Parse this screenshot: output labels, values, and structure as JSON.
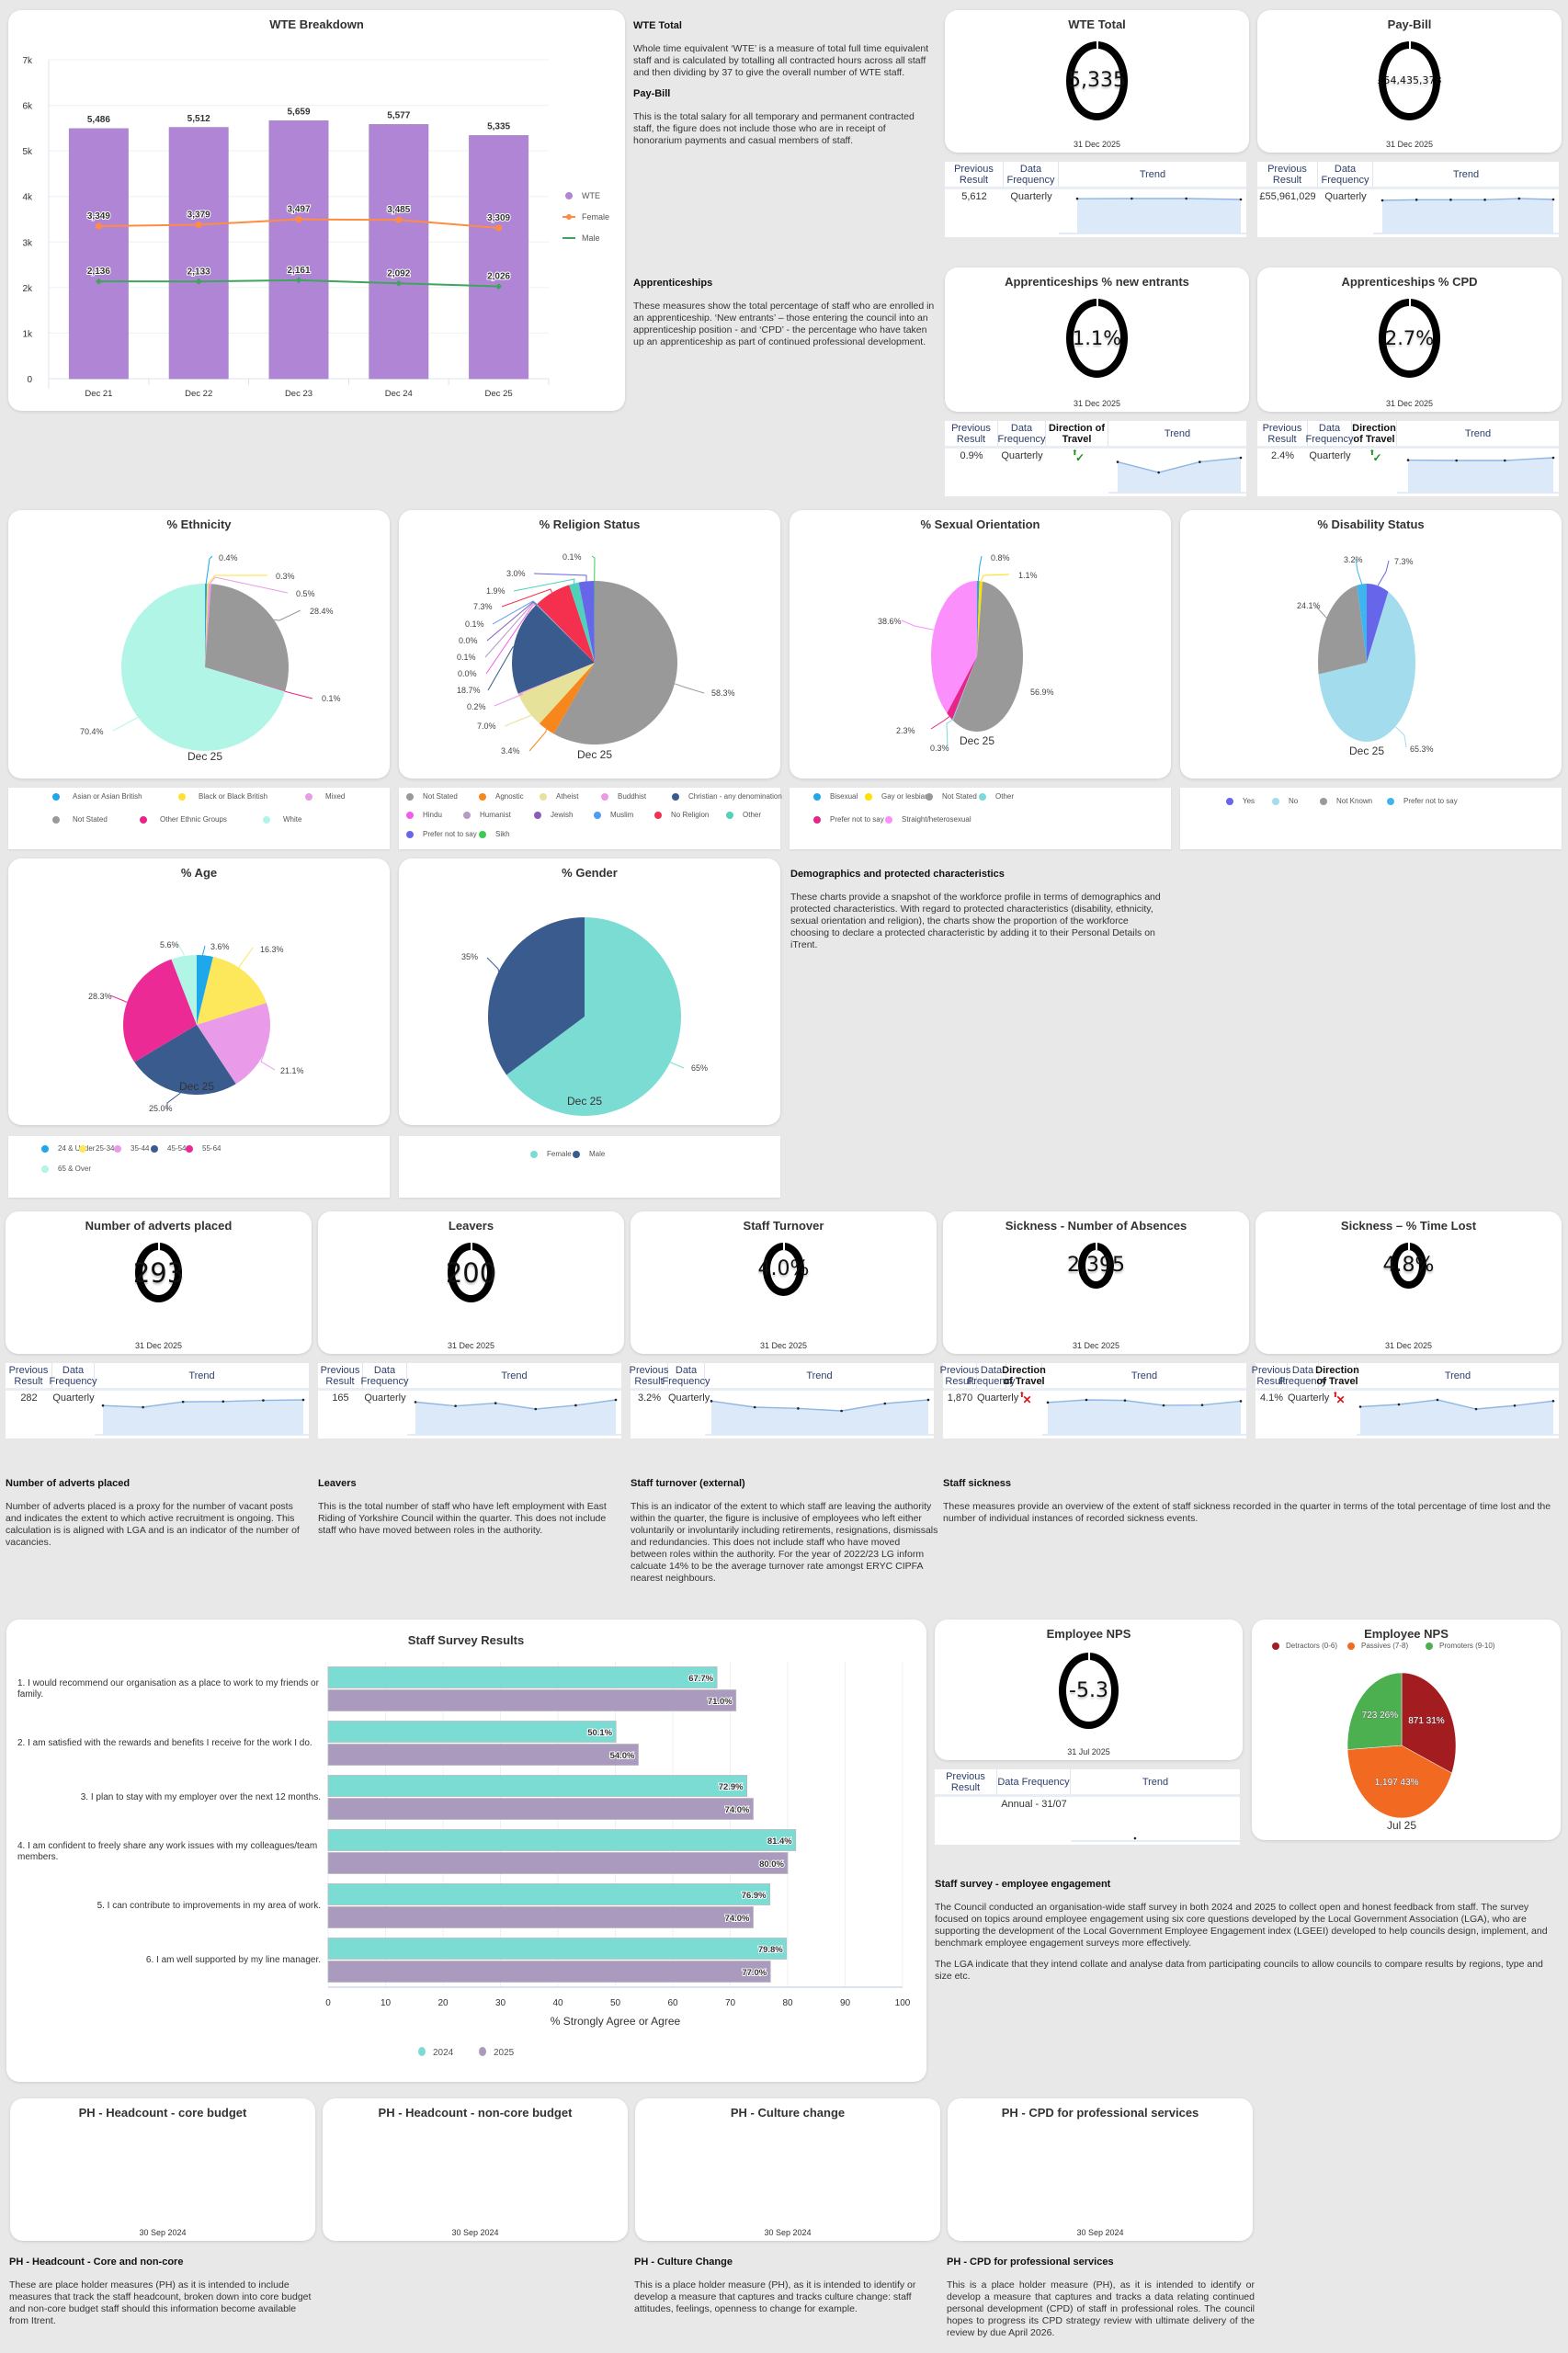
{
  "wte_breakdown": {
    "title": "WTE Breakdown",
    "legend": [
      "WTE",
      "Female",
      "Male"
    ]
  },
  "chart_data": [
    {
      "id": "wte_breakdown",
      "type": "bar",
      "title": "WTE Breakdown",
      "categories": [
        "Dec 21",
        "Dec 22",
        "Dec 23",
        "Dec 24",
        "Dec 25"
      ],
      "series": [
        {
          "name": "WTE",
          "type": "bar",
          "color": "#b085d6",
          "values": [
            5486,
            5512,
            5659,
            5577,
            5335
          ],
          "labels": [
            "5,486",
            "5,512",
            "5,659",
            "5,577",
            "5,335"
          ]
        },
        {
          "name": "Female",
          "type": "line",
          "color": "#ff8c42",
          "values": [
            3349,
            3379,
            3497,
            3485,
            3309
          ],
          "labels": [
            "3,349",
            "3,379",
            "3,497",
            "3,485",
            "3,309"
          ]
        },
        {
          "name": "Male",
          "type": "line",
          "color": "#3fa55b",
          "values": [
            2136,
            2133,
            2161,
            2092,
            2026
          ],
          "labels": [
            "2,136",
            "2,133",
            "2,161",
            "2,092",
            "2,026"
          ]
        }
      ],
      "yticks": [
        "0",
        "1k",
        "2k",
        "3k",
        "4k",
        "5k",
        "6k",
        "7k"
      ],
      "ylim": [
        0,
        7000
      ],
      "legend_position": "right",
      "grid": true
    },
    {
      "id": "ethnicity",
      "type": "pie",
      "title": "% Ethnicity",
      "subtitle": "Dec 25",
      "slices": [
        {
          "label": "Asian or Asian British",
          "value": 0.4,
          "text": "0.4%",
          "color": "#1ea7ea"
        },
        {
          "label": "Black or Black British",
          "value": 0.3,
          "text": "0.3%",
          "color": "#ffe033"
        },
        {
          "label": "Mixed",
          "value": 0.5,
          "text": "0.5%",
          "color": "#eb9ae8"
        },
        {
          "label": "Not Stated",
          "value": 28.4,
          "text": "28.4%",
          "color": "#999999"
        },
        {
          "label": "Other Ethnic Groups",
          "value": 0.1,
          "text": "0.1%",
          "color": "#e8248a"
        },
        {
          "label": "White",
          "value": 70.4,
          "text": "70.4%",
          "color": "#b0f5e6"
        }
      ]
    },
    {
      "id": "religion",
      "type": "pie",
      "title": "% Religion Status",
      "subtitle": "Dec 25",
      "slices": [
        {
          "label": "Not Stated",
          "value": 58.3,
          "text": "58.3%",
          "color": "#999999"
        },
        {
          "label": "Agnostic",
          "value": 3.4,
          "text": "3.4%",
          "color": "#f7871d"
        },
        {
          "label": "Atheist",
          "value": 7.0,
          "text": "7.0%",
          "color": "#e6e29a"
        },
        {
          "label": "Buddhist",
          "value": 0.2,
          "text": "0.2%",
          "color": "#eb9ae8"
        },
        {
          "label": "Christian - any denomination",
          "value": 18.7,
          "text": "18.7%",
          "color": "#3a5b8e"
        },
        {
          "label": "Hindu",
          "value": 0.0,
          "text": "0.0%",
          "color": "#f25ce9"
        },
        {
          "label": "Humanist",
          "value": 0.1,
          "text": "0.1%",
          "color": "#b49cc4"
        },
        {
          "label": "Jewish",
          "value": 0.0,
          "text": "0.0%",
          "color": "#8b5cb8"
        },
        {
          "label": "Muslim",
          "value": 0.1,
          "text": "0.1%",
          "color": "#4e9af5"
        },
        {
          "label": "No Religion",
          "value": 7.3,
          "text": "7.3%",
          "color": "#f5304f"
        },
        {
          "label": "Other",
          "value": 1.9,
          "text": "1.9%",
          "color": "#4fd1bc"
        },
        {
          "label": "Prefer not to say",
          "value": 3.0,
          "text": "3.0%",
          "color": "#6766ea"
        },
        {
          "label": "Sikh",
          "value": 0.1,
          "text": "0.1%",
          "color": "#3dca52"
        }
      ]
    },
    {
      "id": "sexual_orientation",
      "type": "pie",
      "title": "% Sexual Orientation",
      "subtitle": "Dec 25",
      "slices": [
        {
          "label": "Bisexual",
          "value": 0.8,
          "text": "0.8%",
          "color": "#1ea7ea"
        },
        {
          "label": "Gay or lesbian",
          "value": 1.1,
          "text": "1.1%",
          "color": "#ffe000"
        },
        {
          "label": "Not Stated",
          "value": 56.9,
          "text": "56.9%",
          "color": "#999999"
        },
        {
          "label": "Other",
          "value": 0.3,
          "text": "0.3%",
          "color": "#7dd8d8"
        },
        {
          "label": "Prefer not to say",
          "value": 2.3,
          "text": "2.3%",
          "color": "#e8248a"
        },
        {
          "label": "Straight/heterosexual",
          "value": 38.6,
          "text": "38.6%",
          "color": "#fb8ffb"
        }
      ]
    },
    {
      "id": "disability",
      "type": "pie",
      "title": "% Disability Status",
      "subtitle": "Dec 25",
      "slices": [
        {
          "label": "Yes",
          "value": 7.3,
          "text": "7.3%",
          "color": "#6766ea"
        },
        {
          "label": "No",
          "value": 65.3,
          "text": "65.3%",
          "color": "#a3dcec"
        },
        {
          "label": "Not Known",
          "value": 24.1,
          "text": "24.1%",
          "color": "#999999"
        },
        {
          "label": "Prefer not to say",
          "value": 3.2,
          "text": "3.2%",
          "color": "#3fb5ee"
        }
      ]
    },
    {
      "id": "age",
      "type": "pie",
      "title": "% Age",
      "subtitle": "Dec 25",
      "slices": [
        {
          "label": "24 & Under",
          "value": 3.6,
          "text": "3.6%",
          "color": "#1ea7ea"
        },
        {
          "label": "25-34",
          "value": 16.3,
          "text": "16.3%",
          "color": "#fce85a"
        },
        {
          "label": "35-44",
          "value": 21.1,
          "text": "21.1%",
          "color": "#e99ae8"
        },
        {
          "label": "45-54",
          "value": 25.0,
          "text": "25.0%",
          "color": "#3a5b8e"
        },
        {
          "label": "55-64",
          "value": 28.3,
          "text": "28.3%",
          "color": "#eb2a96"
        },
        {
          "label": "65 & Over",
          "value": 5.6,
          "text": "5.6%",
          "color": "#b0f5e6"
        }
      ]
    },
    {
      "id": "gender",
      "type": "pie",
      "title": "% Gender",
      "subtitle": "Dec 25",
      "slices": [
        {
          "label": "Female",
          "value": 65,
          "text": "65%",
          "color": "#7bdcd4"
        },
        {
          "label": "Male",
          "value": 35,
          "text": "35%",
          "color": "#3a5b8e"
        }
      ]
    },
    {
      "id": "staff_survey",
      "type": "bar",
      "orientation": "horizontal",
      "title": "Staff Survey Results",
      "xlabel": "% Strongly Agree or Agree",
      "xlim": [
        0,
        100
      ],
      "xticks": [
        "0",
        "10",
        "20",
        "30",
        "40",
        "50",
        "60",
        "70",
        "80",
        "90",
        "100"
      ],
      "categories": [
        "1. I would recommend our organisation as a place to work to my friends or family.",
        "2. I am satisfied with the rewards and benefits I receive for the work I do.",
        "3. I plan to stay with my employer over the next 12 months.",
        "4. I am confident to freely share any work issues with my colleagues/team members.",
        "5. I can contribute to improvements in my area of work.",
        "6. I am well supported by my line manager."
      ],
      "series": [
        {
          "name": "2024",
          "color": "#7bdcd4",
          "values": [
            67.7,
            50.1,
            72.9,
            81.4,
            76.9,
            79.8
          ],
          "labels": [
            "67.7%",
            "50.1%",
            "72.9%",
            "81.4%",
            "76.9%",
            "79.8%"
          ]
        },
        {
          "name": "2025",
          "color": "#aa9abd",
          "values": [
            71.0,
            54.0,
            74.0,
            80.0,
            74.0,
            77.0
          ],
          "labels": [
            "71.0%",
            "54.0%",
            "74.0%",
            "80.0%",
            "74.0%",
            "77.0%"
          ]
        }
      ],
      "legend_position": "bottom",
      "grid": true
    },
    {
      "id": "enps",
      "type": "pie",
      "title": "Employee NPS",
      "subtitle": "Jul 25",
      "legend_position": "top",
      "slices": [
        {
          "label": "Detractors (0-6)",
          "value": 871,
          "pct": 31,
          "text": "871 31%",
          "color": "#a31c1f"
        },
        {
          "label": "Passives (7-8)",
          "value": 1197,
          "pct": 43,
          "text": "1,197 43%",
          "color": "#f26a22"
        },
        {
          "label": "Promoters (9-10)",
          "value": 723,
          "pct": 26,
          "text": "723 26%",
          "color": "#4caf50"
        }
      ]
    }
  ],
  "kpis": {
    "wte_total": {
      "title": "WTE Total",
      "value": "5,335",
      "date": "31 Dec 2025",
      "prev": "5,612",
      "freq": "Quarterly",
      "trend": [
        5486,
        5512,
        5510,
        5335
      ]
    },
    "pay_bill": {
      "title": "Pay-Bill",
      "value": "£54,435,378",
      "date": "31 Dec 2025",
      "prev": "£55,961,029",
      "freq": "Quarterly",
      "trend": [
        52.8,
        53.9,
        53.9,
        53.9,
        56.0,
        54.4
      ]
    },
    "appr_new": {
      "title": "Apprenticeships % new entrants",
      "value": "1.1%",
      "date": "31 Dec 2025",
      "prev": "0.9%",
      "freq": "Quarterly",
      "direction": "up-good",
      "trend": [
        0.9,
        0.4,
        0.9,
        1.1
      ]
    },
    "appr_cpd": {
      "title": "Apprenticeships % CPD",
      "value": "2.7%",
      "date": "31 Dec 2025",
      "prev": "2.4%",
      "freq": "Quarterly",
      "direction": "up-good",
      "trend": [
        2.4,
        2.35,
        2.35,
        2.7
      ]
    },
    "adverts": {
      "title": "Number of adverts placed",
      "value": "293",
      "date": "31 Dec 2025",
      "prev": "282",
      "freq": "Quarterly",
      "trend": [
        240,
        225,
        275,
        278,
        288,
        293
      ]
    },
    "leavers": {
      "title": "Leavers",
      "value": "200",
      "date": "31 Dec 2025",
      "prev": "165",
      "freq": "Quarterly",
      "trend": [
        190,
        172,
        185,
        158,
        175,
        200
      ]
    },
    "turnover": {
      "title": "Staff Turnover",
      "value": "4.0%",
      "date": "31 Dec 2025",
      "prev": "3.2%",
      "freq": "Quarterly",
      "trend": [
        3.9,
        3.4,
        3.3,
        3.1,
        3.7,
        4.0
      ]
    },
    "sick_abs": {
      "title": "Sickness - Number of Absences",
      "value": "2,395",
      "date": "31 Dec 2025",
      "prev": "1,870",
      "freq": "Quarterly",
      "direction": "up-bad",
      "trend": [
        2350,
        2440,
        2420,
        2250,
        2260,
        2395
      ]
    },
    "sick_pct": {
      "title": "Sickness – % Time Lost",
      "value": "4.8%",
      "date": "31 Dec 2025",
      "prev": "4.1%",
      "freq": "Quarterly",
      "direction": "up-bad",
      "trend": [
        4.3,
        4.5,
        4.9,
        4.1,
        4.4,
        4.8
      ]
    },
    "enps": {
      "title": "Employee NPS",
      "value": "-5.3",
      "date": "31 Jul 2025",
      "prev": "",
      "freq": "Annual - 31/07",
      "trend": [
        -5.3
      ]
    }
  },
  "table_headers": {
    "prev_one_line": "Previous Result",
    "prev_two_line": "Previous Result",
    "freq": "Data Frequency",
    "direction": "Direction of Travel",
    "trend": "Trend"
  },
  "placeholders": [
    {
      "title": "PH - Headcount - core budget",
      "date": "30 Sep 2024"
    },
    {
      "title": "PH - Headcount - non-core budget",
      "date": "30 Sep 2024"
    },
    {
      "title": "PH - Culture change",
      "date": "30 Sep 2024"
    },
    {
      "title": "PH - CPD for professional services",
      "date": "30 Sep 2024"
    }
  ],
  "descriptions": {
    "wte_total": {
      "title": "WTE Total",
      "body": "Whole time equivalent ‘WTE’ is a measure of total full time equivalent staff and is calculated by totalling all contracted hours across all staff and then dividing by 37 to give the overall number of WTE staff."
    },
    "pay_bill": {
      "title": "Pay-Bill",
      "body": "This is the total salary for all temporary and permanent contracted staff, the figure does not include those who are in receipt of honorarium payments and casual members of staff."
    },
    "apprenticeships": {
      "title": "Apprenticeships",
      "body": "These measures show the total percentage of staff who are enrolled in an apprenticeship.  ‘New entrants’ – those entering the council into an apprenticeship position - and ‘CPD’ - the percentage who have taken up an apprenticeship as part of continued professional development."
    },
    "demographics": {
      "title": "Demographics and protected characteristics",
      "body": "These charts provide a snapshot of the workforce profile in terms of demographics and protected characteristics. With regard to protected characteristics (disability, ethnicity, sexual orientation and religion), the charts show the proportion of the workforce choosing to declare a protected characteristic by adding it to their Personal Details on iTrent."
    },
    "adverts": {
      "title": "Number of adverts placed",
      "body": "Number of adverts placed is a proxy for the number of vacant posts and indicates the extent to which active recruitment is ongoing. This calculation is is aligned with LGA and is an indicator of the number of vacancies."
    },
    "leavers": {
      "title": "Leavers",
      "body": "This is the total number of staff who have left employment with East Riding of Yorkshire Council within the quarter. This does not include staff who have moved between roles in the authority."
    },
    "turnover": {
      "title": "Staff turnover (external)",
      "body": "This is an indicator of the extent to which staff are leaving the authority within the quarter, the figure is inclusive of employees who left either voluntarily or involuntarily including retirements, resignations, dismissals and redundancies. This does not include staff who have moved between roles within the authority. For the year of 2022/23 LG inform calcuate 14% to be the average turnover rate amongst ERYC CIPFA nearest neighbours."
    },
    "sickness": {
      "title": "Staff sickness",
      "body": "These measures provide an overview of the extent of staff sickness recorded in the quarter in terms of the total percentage of time lost and the number of individual instances of recorded sickness events."
    },
    "engagement": {
      "title": "Staff survey - employee engagement",
      "body1": "The Council conducted an organisation-wide staff survey in both 2024 and 2025 to collect open and honest feedback from staff. The survey focused on topics around employee engagement using six core questions developed by the Local Government Association (LGA), who are supporting the development of the Local Government Employee Engagement index (LGEEI) developed to help councils design, implement, and benchmark employee engagement surveys more effectively.",
      "body2": "The LGA indicate that they intend collate and analyse data from participating councils to allow councils to compare results by regions, type and size etc."
    },
    "ph_headcount": {
      "title": "PH - Headcount - Core and non-core",
      "body": "These are place holder measures (PH) as it is intended to include measures that track the staff headcount, broken down into core budget and non-core budget staff should this information become available from Itrent."
    },
    "ph_culture": {
      "title": "PH - Culture Change",
      "body": "This is a place holder measure (PH), as it is intended to identify or develop a measure that captures and tracks culture change: staff attitudes, feelings, openness to change for example."
    },
    "ph_cpd": {
      "title": "PH - CPD for professional services",
      "body": "This is a place holder measure (PH), as it is intended to identify or develop a measure that captures and tracks a data relating continued personal development (CPD) of staff in professional roles. The council hopes to progress its CPD strategy review with ultimate delivery of the review by due April 2026."
    }
  }
}
